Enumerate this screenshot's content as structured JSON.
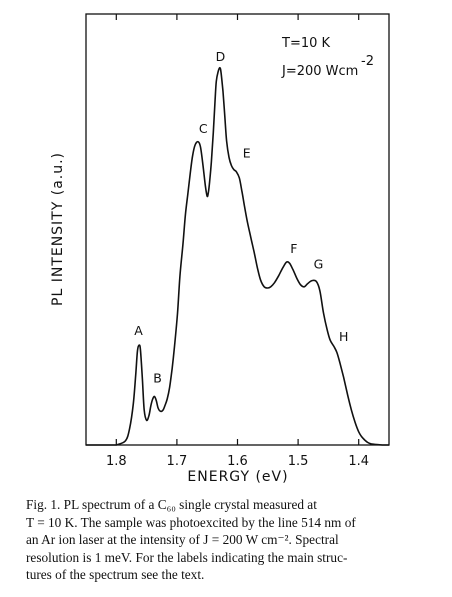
{
  "chart_data": {
    "type": "line",
    "xlabel": "ENERGY (eV)",
    "ylabel": "PL INTENSITY (a.u.)",
    "xlim": [
      1.85,
      1.35
    ],
    "x_reversed": true,
    "ylim": [
      0,
      1.0
    ],
    "x_ticks": [
      1.8,
      1.7,
      1.6,
      1.5,
      1.4
    ],
    "x_tick_labels": [
      "1.8",
      "1.7",
      "1.6",
      "1.5",
      "1.4"
    ],
    "grid": false,
    "legend": "none",
    "annotations": [
      "T=10 K",
      "J=200 Wcm",
      "-2"
    ],
    "peak_labels": [
      {
        "label": "A",
        "x": 1.76,
        "y": 0.243
      },
      {
        "label": "B",
        "x": 1.732,
        "y": 0.123
      },
      {
        "label": "C",
        "x": 1.65,
        "y": 0.735
      },
      {
        "label": "D",
        "x": 1.625,
        "y": 0.915
      },
      {
        "label": "E",
        "x": 1.598,
        "y": 0.675
      },
      {
        "label": "F",
        "x": 1.507,
        "y": 0.443
      },
      {
        "label": "G",
        "x": 1.473,
        "y": 0.405
      },
      {
        "label": "H",
        "x": 1.438,
        "y": 0.238
      }
    ],
    "series": [
      {
        "x": [
          1.8,
          1.785,
          1.778,
          1.772,
          1.768,
          1.765,
          1.762,
          1.76,
          1.757,
          1.754,
          1.75,
          1.746,
          1.743,
          1.74,
          1.737,
          1.734,
          1.731,
          1.727,
          1.723,
          1.72,
          1.716,
          1.712,
          1.708,
          1.704,
          1.699,
          1.695,
          1.69,
          1.686,
          1.682,
          1.678,
          1.674,
          1.67,
          1.665,
          1.661,
          1.657,
          1.653,
          1.65,
          1.648,
          1.646,
          1.643,
          1.64,
          1.637,
          1.635,
          1.632,
          1.629,
          1.627,
          1.624,
          1.621,
          1.618,
          1.614,
          1.61,
          1.606,
          1.602,
          1.597,
          1.593,
          1.589,
          1.584,
          1.578,
          1.572,
          1.567,
          1.562,
          1.556,
          1.55,
          1.545,
          1.539,
          1.532,
          1.525,
          1.519,
          1.514,
          1.508,
          1.502,
          1.496,
          1.49,
          1.484,
          1.477,
          1.47,
          1.464,
          1.458,
          1.452,
          1.447,
          1.441,
          1.436,
          1.431,
          1.425,
          1.418,
          1.412,
          1.406,
          1.4,
          1.395,
          1.39,
          1.385,
          1.38,
          1.37,
          1.36
        ],
        "y": [
          0.0,
          0.01,
          0.04,
          0.1,
          0.17,
          0.23,
          0.243,
          0.23,
          0.16,
          0.085,
          0.06,
          0.072,
          0.095,
          0.112,
          0.118,
          0.108,
          0.09,
          0.082,
          0.085,
          0.095,
          0.112,
          0.14,
          0.185,
          0.24,
          0.32,
          0.41,
          0.49,
          0.56,
          0.61,
          0.66,
          0.705,
          0.73,
          0.738,
          0.725,
          0.68,
          0.63,
          0.605,
          0.615,
          0.64,
          0.69,
          0.76,
          0.84,
          0.885,
          0.908,
          0.918,
          0.905,
          0.86,
          0.8,
          0.74,
          0.7,
          0.68,
          0.67,
          0.665,
          0.65,
          0.62,
          0.585,
          0.545,
          0.505,
          0.465,
          0.43,
          0.402,
          0.385,
          0.382,
          0.385,
          0.395,
          0.412,
          0.432,
          0.445,
          0.442,
          0.425,
          0.405,
          0.39,
          0.385,
          0.393,
          0.4,
          0.398,
          0.375,
          0.32,
          0.28,
          0.255,
          0.24,
          0.225,
          0.2,
          0.165,
          0.12,
          0.085,
          0.055,
          0.032,
          0.02,
          0.012,
          0.006,
          0.003,
          0.001,
          0.0
        ]
      }
    ]
  },
  "caption": {
    "lines": [
      "Fig. 1.  PL spectrum of a C₆₀ single crystal measured at",
      "T = 10 K. The sample was photoexcited by the line 514 nm of",
      "an Ar ion laser at the intensity of J = 200 W cm⁻². Spectral",
      "resolution is 1 meV. For the labels indicating the main struc-",
      "tures of the spectrum see the text."
    ]
  }
}
